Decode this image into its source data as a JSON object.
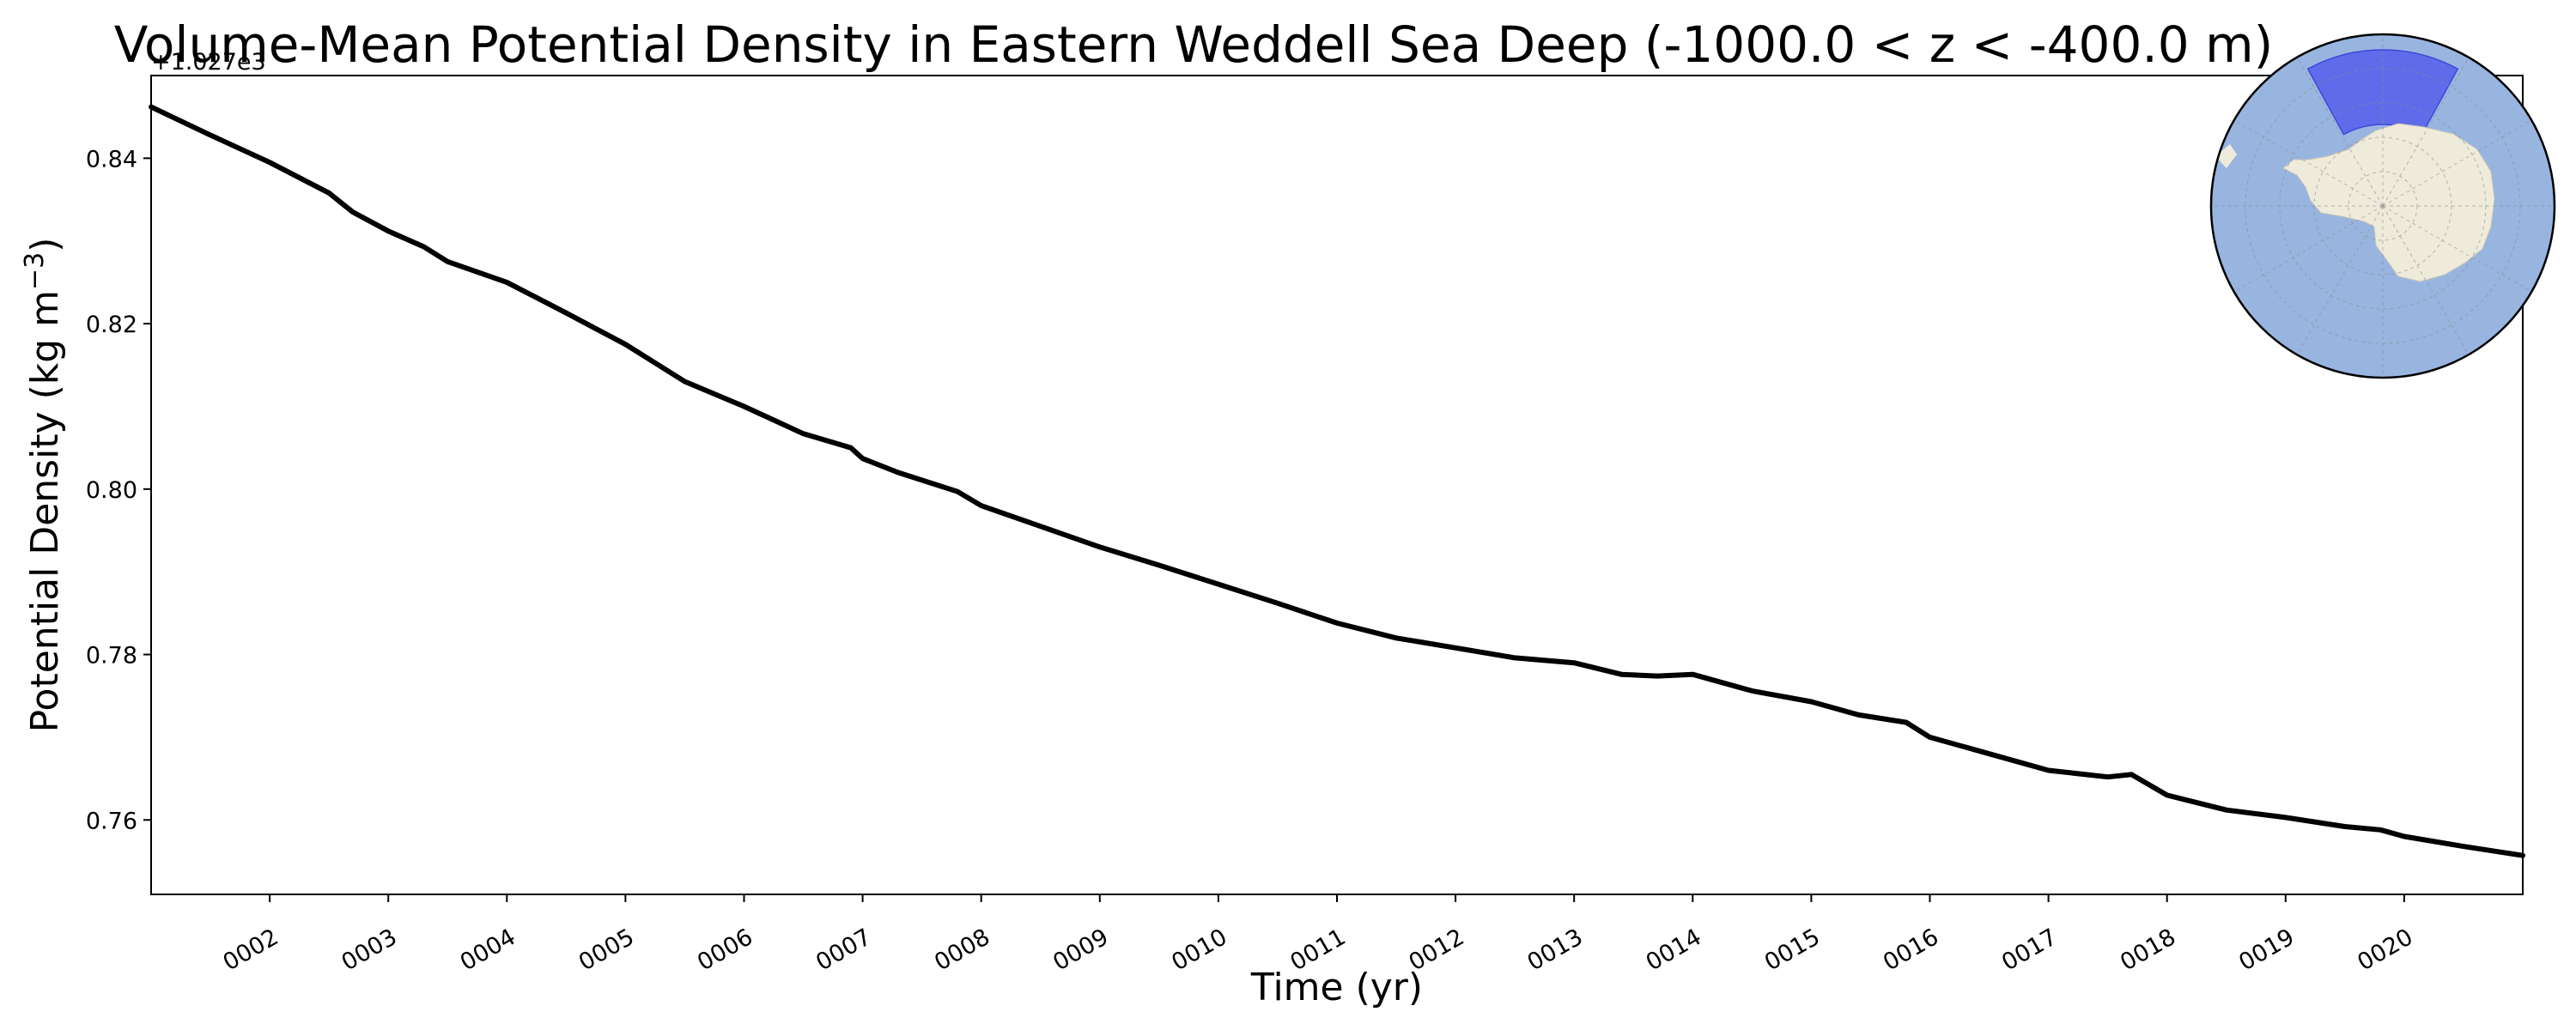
{
  "chart_data": {
    "type": "line",
    "title": "Volume-Mean Potential Density in Eastern Weddell Sea Deep (-1000.0 < z < -400.0 m)",
    "xlabel": "Time (yr)",
    "ylabel_main": "Potential Density (kg m",
    "ylabel_sup": "−3",
    "ylabel_close": ")",
    "y_offset_label": "+1.027e3",
    "xlim": [
      1.0,
      21.0
    ],
    "ylim": [
      0.751,
      0.85
    ],
    "x_tick_values": [
      2,
      3,
      4,
      5,
      6,
      7,
      8,
      9,
      10,
      11,
      12,
      13,
      14,
      15,
      16,
      17,
      18,
      19,
      20
    ],
    "x_tick_labels": [
      "0002",
      "0003",
      "0004",
      "0005",
      "0006",
      "0007",
      "0008",
      "0009",
      "0010",
      "0011",
      "0012",
      "0013",
      "0014",
      "0015",
      "0016",
      "0017",
      "0018",
      "0019",
      "0020"
    ],
    "y_tick_values": [
      0.76,
      0.78,
      0.8,
      0.82,
      0.84
    ],
    "y_tick_labels": [
      "0.76",
      "0.78",
      "0.80",
      "0.82",
      "0.84"
    ],
    "grid": false,
    "line_color": "#000000",
    "series": [
      {
        "x": [
          1.0,
          1.5,
          2.0,
          2.5,
          2.7,
          3.0,
          3.3,
          3.5,
          4.0,
          4.5,
          5.0,
          5.5,
          6.0,
          6.5,
          6.9,
          7.0,
          7.3,
          7.8,
          8.0,
          8.5,
          9.0,
          9.5,
          10.0,
          10.5,
          11.0,
          11.5,
          12.0,
          12.5,
          13.0,
          13.4,
          13.7,
          14.0,
          14.5,
          15.0,
          15.4,
          15.8,
          16.0,
          16.5,
          17.0,
          17.5,
          17.7,
          18.0,
          18.5,
          19.0,
          19.5,
          19.8,
          20.0,
          20.5,
          21.0
        ],
        "y": [
          0.8462,
          0.8428,
          0.8395,
          0.8358,
          0.8335,
          0.8312,
          0.8293,
          0.8275,
          0.825,
          0.8213,
          0.8175,
          0.813,
          0.81,
          0.8067,
          0.805,
          0.8037,
          0.802,
          0.7997,
          0.798,
          0.7955,
          0.793,
          0.7908,
          0.7885,
          0.7862,
          0.7838,
          0.782,
          0.7808,
          0.7796,
          0.779,
          0.7776,
          0.7774,
          0.7776,
          0.7756,
          0.7743,
          0.7727,
          0.7718,
          0.77,
          0.768,
          0.766,
          0.7652,
          0.7655,
          0.763,
          0.7612,
          0.7603,
          0.7592,
          0.7588,
          0.758,
          0.7568,
          0.7557
        ]
      }
    ],
    "inset_map": {
      "projection": "south-polar-stereographic",
      "ocean_color": "#98b5e0",
      "land_color": "#efebdb",
      "region_color": "#5d67ea",
      "edge_color": "#000000"
    }
  }
}
